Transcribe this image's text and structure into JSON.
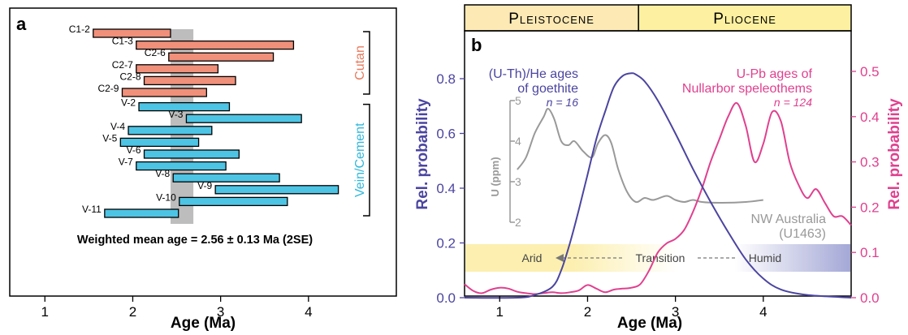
{
  "chart_data": [
    {
      "type": "bar",
      "orientation": "horizontal-range",
      "panel_label": "a",
      "xlabel": "Age (Ma)",
      "xlim": [
        0.6,
        5.0
      ],
      "xticks": [
        "1",
        "2",
        "3",
        "4"
      ],
      "colors": {
        "cutan": "#f0907a",
        "vein": "#4ec4e4",
        "mean_band": "#bdbdbd"
      },
      "bars": [
        {
          "label": "C1-2",
          "start": 1.55,
          "end": 2.43,
          "group": "cutan"
        },
        {
          "label": "C1-3",
          "start": 2.04,
          "end": 3.83,
          "group": "cutan"
        },
        {
          "label": "C2-6",
          "start": 2.41,
          "end": 3.6,
          "group": "cutan"
        },
        {
          "label": "C2-7",
          "start": 2.04,
          "end": 2.97,
          "group": "cutan"
        },
        {
          "label": "C2-8",
          "start": 2.13,
          "end": 3.17,
          "group": "cutan"
        },
        {
          "label": "C2-9",
          "start": 1.88,
          "end": 2.84,
          "group": "cutan"
        },
        {
          "label": "V-2",
          "start": 2.07,
          "end": 3.1,
          "group": "vein"
        },
        {
          "label": "V-3",
          "start": 2.61,
          "end": 3.92,
          "group": "vein"
        },
        {
          "label": "V-4",
          "start": 1.95,
          "end": 2.9,
          "group": "vein"
        },
        {
          "label": "V-5",
          "start": 1.86,
          "end": 2.75,
          "group": "vein"
        },
        {
          "label": "V-6",
          "start": 2.13,
          "end": 3.21,
          "group": "vein"
        },
        {
          "label": "V-7",
          "start": 2.04,
          "end": 3.06,
          "group": "vein"
        },
        {
          "label": "V-8",
          "start": 2.46,
          "end": 3.67,
          "group": "vein"
        },
        {
          "label": "V-9",
          "start": 2.94,
          "end": 4.34,
          "group": "vein"
        },
        {
          "label": "V-10",
          "start": 2.53,
          "end": 3.76,
          "group": "vein"
        },
        {
          "label": "V-11",
          "start": 1.68,
          "end": 2.52,
          "group": "vein"
        }
      ],
      "mean_band": [
        2.43,
        2.69
      ],
      "groups": [
        {
          "name": "Cutan",
          "from": "C1-2",
          "to": "C2-9"
        },
        {
          "name": "Vein/Cement",
          "from": "V-2",
          "to": "V-11"
        }
      ],
      "annotation": "Weighted mean age = 2.56 ± 0.13 Ma (2SE)"
    },
    {
      "type": "line",
      "panel_label": "b",
      "xlabel": "Age (Ma)",
      "xlim": [
        0.6,
        5.0
      ],
      "xticks": [
        "1",
        "2",
        "3",
        "4"
      ],
      "epochs": [
        {
          "name": "Pleistocene",
          "from": 0.6,
          "to": 2.58,
          "color": "#fce9b4"
        },
        {
          "name": "Pliocene",
          "from": 2.58,
          "to": 5.0,
          "color": "#fdf0a0"
        }
      ],
      "y_left": {
        "label": "Rel. probability",
        "ylim": [
          -0.05,
          0.95
        ],
        "ticks": [
          "0.0",
          "0.2",
          "0.4",
          "0.6",
          "0.8"
        ],
        "color": "#4b45a0"
      },
      "y_right": {
        "label": "Rel. probability",
        "ylim": [
          -0.03,
          0.57
        ],
        "ticks": [
          "0.0",
          "0.1",
          "0.2",
          "0.3",
          "0.4",
          "0.5"
        ],
        "color": "#e0408f"
      },
      "u_inset": {
        "label": "U (ppm)",
        "ticks": [
          "2",
          "3",
          "4",
          "5"
        ],
        "ylim": [
          2,
          5
        ],
        "color": "#999999"
      },
      "series": [
        {
          "name": "(U-Th)/He ages of goethite",
          "n_label": "n = 16",
          "color": "#4b45a0",
          "axis": "left",
          "x": [
            0.6,
            1.2,
            1.4,
            1.6,
            1.7,
            1.8,
            1.9,
            2.0,
            2.1,
            2.2,
            2.3,
            2.4,
            2.5,
            2.55,
            2.65,
            2.8,
            3.0,
            3.2,
            3.4,
            3.6,
            3.8,
            4.0,
            4.2,
            4.5,
            5.0
          ],
          "y": [
            0.0,
            0.0,
            0.01,
            0.04,
            0.1,
            0.2,
            0.32,
            0.45,
            0.58,
            0.68,
            0.77,
            0.81,
            0.82,
            0.815,
            0.79,
            0.72,
            0.6,
            0.47,
            0.35,
            0.24,
            0.14,
            0.07,
            0.03,
            0.01,
            0.0
          ]
        },
        {
          "name": "U-Pb ages of Nullarbor speleothems",
          "n_label": "n = 124",
          "color": "#e0408f",
          "axis": "right",
          "x": [
            0.6,
            0.7,
            0.8,
            0.9,
            1.0,
            1.1,
            1.2,
            1.3,
            1.4,
            1.5,
            1.6,
            1.7,
            1.8,
            1.9,
            2.0,
            2.1,
            2.2,
            2.3,
            2.4,
            2.5,
            2.6,
            2.7,
            2.8,
            2.9,
            3.0,
            3.1,
            3.2,
            3.3,
            3.4,
            3.5,
            3.6,
            3.7,
            3.8,
            3.9,
            4.0,
            4.1,
            4.2,
            4.3,
            4.4,
            4.5,
            4.6,
            4.7,
            4.8,
            4.9,
            5.0
          ],
          "y": [
            0.03,
            0.015,
            0.01,
            0.018,
            0.022,
            0.02,
            0.013,
            0.01,
            0.008,
            0.01,
            0.012,
            0.01,
            0.012,
            0.016,
            0.028,
            0.02,
            0.012,
            0.018,
            0.02,
            0.022,
            0.03,
            0.06,
            0.1,
            0.12,
            0.13,
            0.15,
            0.19,
            0.24,
            0.3,
            0.35,
            0.4,
            0.43,
            0.38,
            0.3,
            0.34,
            0.41,
            0.39,
            0.3,
            0.25,
            0.22,
            0.24,
            0.21,
            0.18,
            0.18,
            0.16
          ]
        },
        {
          "name": "NW Australia",
          "name2": "(U1463)",
          "color": "#999999",
          "axis": "inset",
          "x": [
            1.2,
            1.3,
            1.4,
            1.5,
            1.55,
            1.62,
            1.7,
            1.78,
            1.85,
            1.95,
            2.05,
            2.12,
            2.2,
            2.27,
            2.35,
            2.45,
            2.55,
            2.65,
            2.75,
            2.9,
            3.0,
            3.1,
            3.2,
            3.3,
            3.5,
            3.8,
            4.0
          ],
          "y": [
            3.3,
            3.6,
            4.2,
            4.6,
            4.8,
            4.55,
            4.0,
            3.9,
            4.0,
            3.75,
            3.6,
            3.95,
            4.15,
            3.95,
            3.3,
            2.75,
            2.5,
            2.6,
            2.55,
            2.65,
            2.55,
            2.5,
            2.55,
            2.5,
            2.48,
            2.5,
            2.55
          ]
        }
      ],
      "climate_bar": {
        "arid": "Arid",
        "transition": "Transition",
        "humid": "Humid",
        "arid_color": "#fcefb0",
        "humid_color": "#a4a8d6"
      }
    }
  ]
}
